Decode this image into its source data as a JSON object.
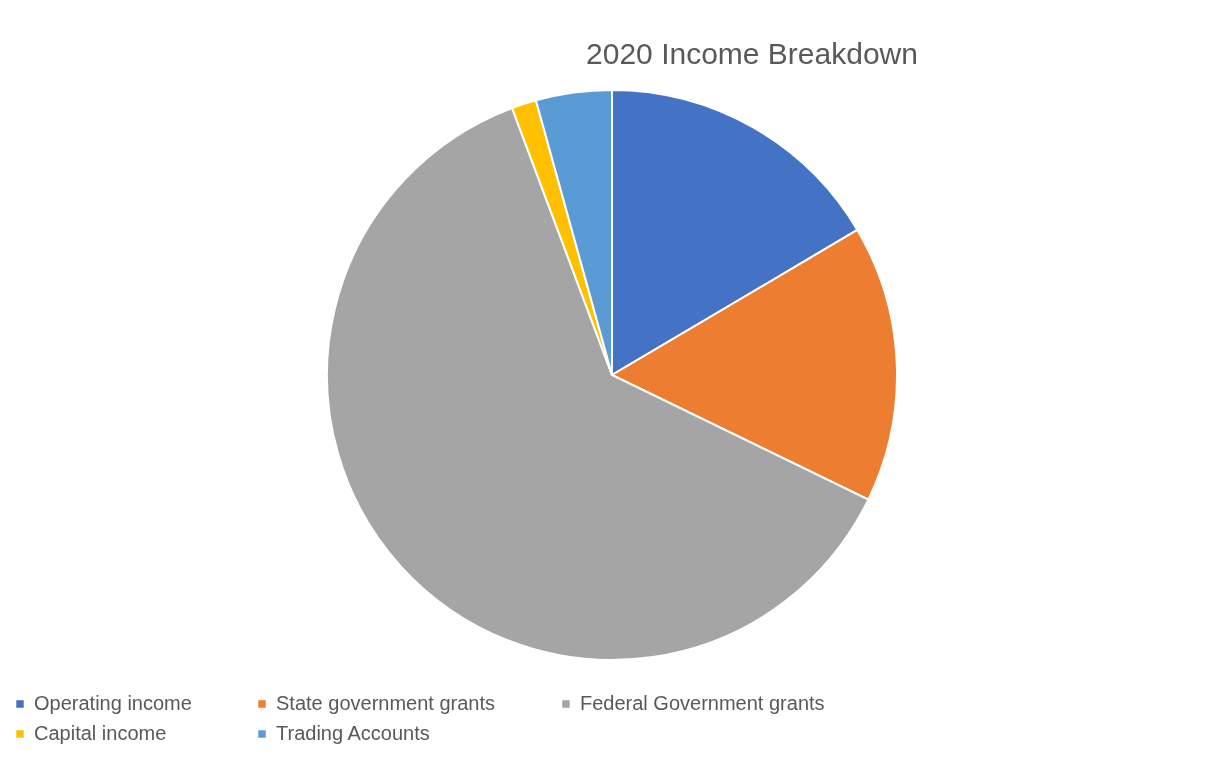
{
  "chart_data": {
    "type": "pie",
    "title": "2020 Income Breakdown",
    "categories": [
      "Operating income",
      "State government grants",
      "Federal Government grants",
      "Capital income",
      "Trading Accounts"
    ],
    "values": [
      16.5,
      15.7,
      62.1,
      1.4,
      4.3
    ],
    "colors": [
      "#4472c4",
      "#ed7d31",
      "#a5a5a5",
      "#ffc000",
      "#5b9bd5"
    ],
    "legend": "bottom"
  }
}
